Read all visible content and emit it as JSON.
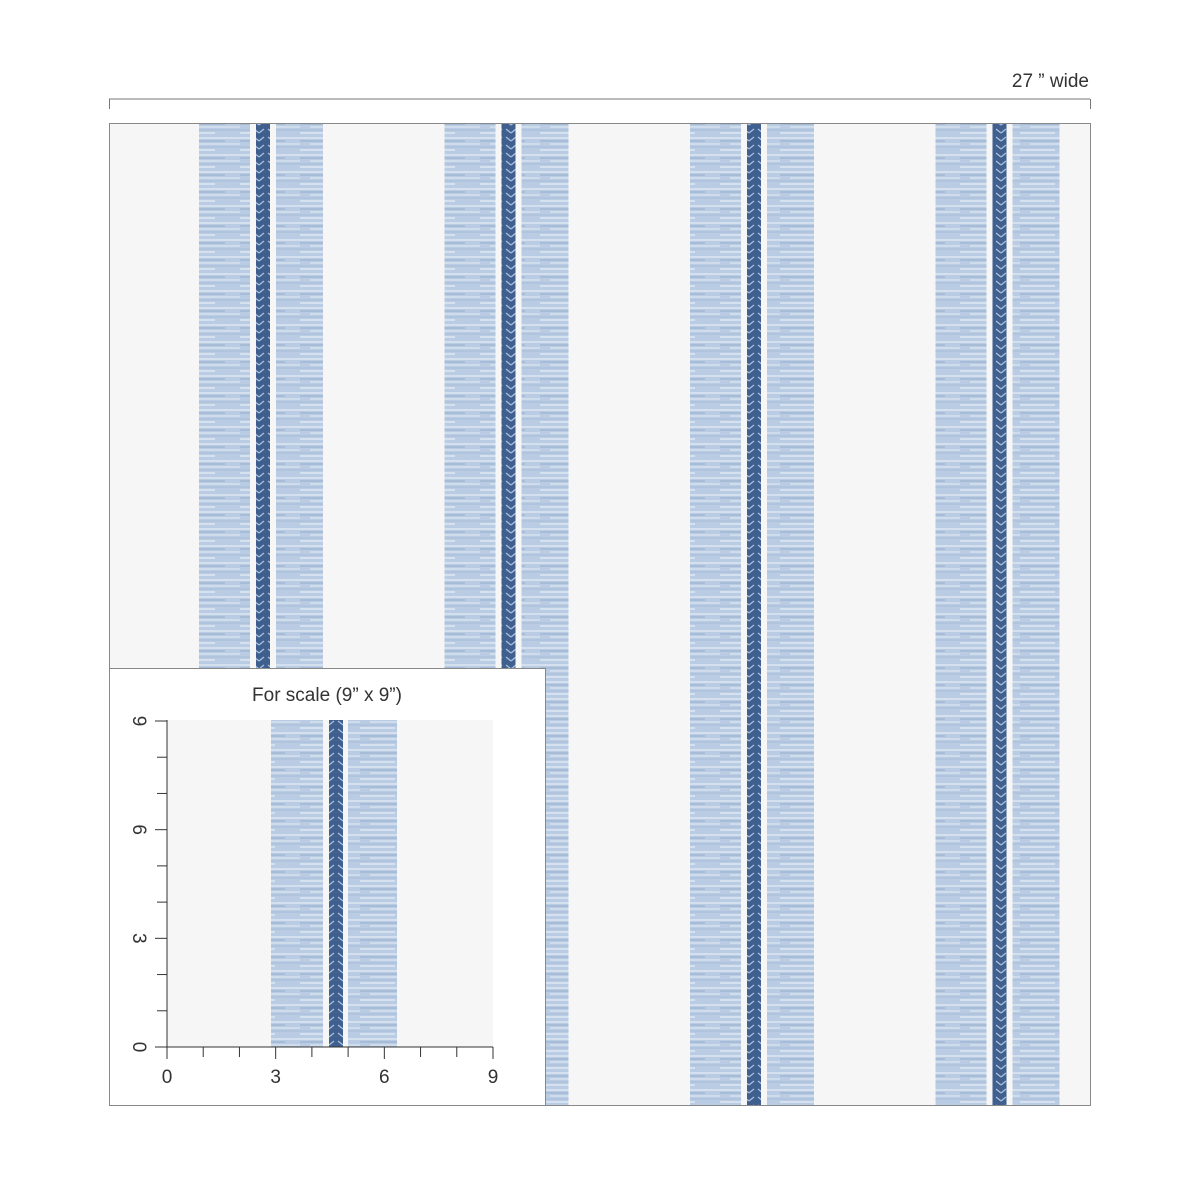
{
  "width_label": "27 ” wide",
  "inset": {
    "title": "For scale (9” x 9”)",
    "x_labels": [
      "0",
      "3",
      "6",
      "9"
    ],
    "y_labels": [
      "0",
      "3",
      "6",
      "9"
    ]
  }
}
